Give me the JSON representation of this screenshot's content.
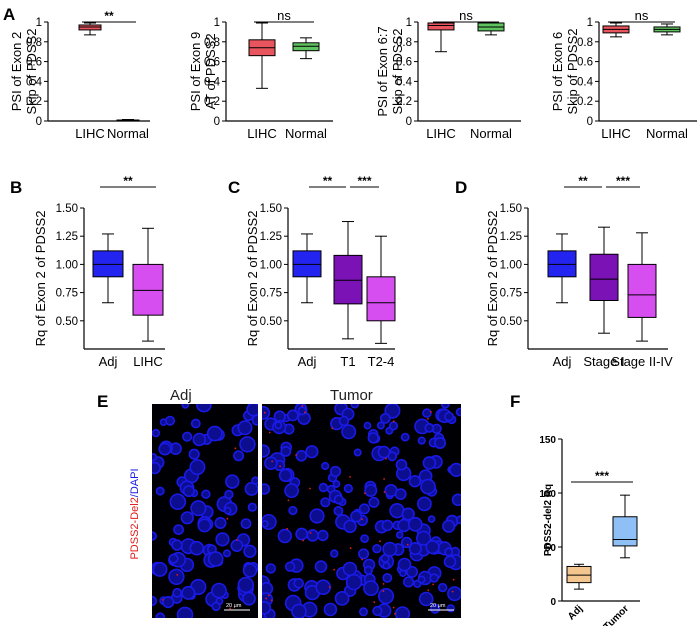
{
  "panel_labels": [
    "A",
    "B",
    "C",
    "D",
    "E",
    "F"
  ],
  "colors": {
    "red_box": "#e8555e",
    "green_box": "#5fc35f",
    "blue_box": "#2424f0",
    "purple_box": "#7a12b5",
    "magenta_box": "#d64ef0",
    "tan_box": "#f3c58f",
    "lightblue_box": "#8fc0f5",
    "stain_blue": "#1a1ae6",
    "stain_red": "#e31b1b"
  },
  "chart_data": [
    {
      "type": "box",
      "panel": "A",
      "ylabel_lines": [
        "PSI of Exon 2",
        "Skip of PDSS2"
      ],
      "categories": [
        "LIHC",
        "Normal"
      ],
      "ylim": [
        0,
        1
      ],
      "yticks": [
        0,
        0.2,
        0.4,
        0.6,
        0.8,
        1
      ],
      "boxes": [
        {
          "min": 0.87,
          "q1": 0.92,
          "median": 0.95,
          "q3": 0.97,
          "max": 0.99,
          "color": "red_box"
        },
        {
          "min": 0.0,
          "q1": 0.003,
          "median": 0.006,
          "q3": 0.01,
          "max": 0.015,
          "color": "green_box"
        }
      ],
      "significance": [
        {
          "from": 0,
          "to": 1,
          "label": "**"
        }
      ]
    },
    {
      "type": "box",
      "panel": "A",
      "ylabel_lines": [
        "PSI of Exon 9",
        "AT of PDSS2"
      ],
      "categories": [
        "LIHC",
        "Normal"
      ],
      "ylim": [
        0,
        1
      ],
      "yticks": [
        0,
        0.2,
        0.4,
        0.6,
        0.8,
        1
      ],
      "boxes": [
        {
          "min": 0.33,
          "q1": 0.66,
          "median": 0.74,
          "q3": 0.82,
          "max": 0.99,
          "color": "red_box"
        },
        {
          "min": 0.63,
          "q1": 0.71,
          "median": 0.755,
          "q3": 0.79,
          "max": 0.84,
          "color": "green_box"
        }
      ],
      "significance": [
        {
          "from": 0,
          "to": 1,
          "label": "ns"
        }
      ]
    },
    {
      "type": "box",
      "panel": "A",
      "ylabel_lines": [
        "PSI of Exon 6:7",
        "Skip of PDSS2"
      ],
      "categories": [
        "LIHC",
        "Normal"
      ],
      "ylim": [
        0,
        1
      ],
      "yticks": [
        0,
        0.2,
        0.4,
        0.6,
        0.8,
        1
      ],
      "boxes": [
        {
          "min": 0.7,
          "q1": 0.92,
          "median": 0.965,
          "q3": 0.99,
          "max": 1.0,
          "color": "red_box"
        },
        {
          "min": 0.87,
          "q1": 0.91,
          "median": 0.95,
          "q3": 0.99,
          "max": 1.0,
          "color": "green_box"
        }
      ],
      "significance": [
        {
          "from": 0,
          "to": 1,
          "label": "ns"
        }
      ]
    },
    {
      "type": "box",
      "panel": "A",
      "ylabel_lines": [
        "PSI of Exon 6",
        "Skip of PDSS2"
      ],
      "categories": [
        "LIHC",
        "Normal"
      ],
      "ylim": [
        0,
        1
      ],
      "yticks": [
        0,
        0.2,
        0.4,
        0.6,
        0.8,
        1
      ],
      "boxes": [
        {
          "min": 0.85,
          "q1": 0.89,
          "median": 0.925,
          "q3": 0.96,
          "max": 0.99,
          "color": "red_box"
        },
        {
          "min": 0.87,
          "q1": 0.9,
          "median": 0.925,
          "q3": 0.95,
          "max": 0.98,
          "color": "green_box"
        }
      ],
      "significance": [
        {
          "from": 0,
          "to": 1,
          "label": "ns"
        }
      ]
    },
    {
      "type": "box",
      "panel": "B",
      "ylabel_lines": [
        "Rq of Exon 2 of PDSS2"
      ],
      "categories": [
        "Adj",
        "LIHC"
      ],
      "ylim": [
        0.25,
        1.5
      ],
      "yticks": [
        0.5,
        0.75,
        1.0,
        1.25,
        1.5
      ],
      "ytick_labels": [
        "0.50",
        "0.75",
        "1.00",
        "1.25",
        "1.50"
      ],
      "boxes": [
        {
          "min": 0.66,
          "q1": 0.89,
          "median": 1.0,
          "q3": 1.12,
          "max": 1.27,
          "color": "blue_box"
        },
        {
          "min": 0.32,
          "q1": 0.55,
          "median": 0.77,
          "q3": 1.0,
          "max": 1.32,
          "color": "magenta_box"
        }
      ],
      "significance": [
        {
          "from": 0,
          "to": 1,
          "label": "**"
        }
      ]
    },
    {
      "type": "box",
      "panel": "C",
      "ylabel_lines": [
        "Rq of Exon 2 of PDSS2"
      ],
      "categories": [
        "Adj",
        "T1",
        "T2-4"
      ],
      "ylim": [
        0.25,
        1.5
      ],
      "yticks": [
        0.5,
        0.75,
        1.0,
        1.25,
        1.5
      ],
      "ytick_labels": [
        "0.50",
        "0.75",
        "1.00",
        "1.25",
        "1.50"
      ],
      "boxes": [
        {
          "min": 0.66,
          "q1": 0.89,
          "median": 1.0,
          "q3": 1.12,
          "max": 1.27,
          "color": "blue_box"
        },
        {
          "min": 0.34,
          "q1": 0.65,
          "median": 0.86,
          "q3": 1.08,
          "max": 1.38,
          "color": "purple_box"
        },
        {
          "min": 0.3,
          "q1": 0.5,
          "median": 0.66,
          "q3": 0.89,
          "max": 1.25,
          "color": "magenta_box"
        }
      ],
      "significance": [
        {
          "from": 0,
          "to": 1,
          "label": "**"
        },
        {
          "from": 1,
          "to": 2,
          "label": "***"
        }
      ]
    },
    {
      "type": "box",
      "panel": "D",
      "ylabel_lines": [
        "Rq of Exon 2 of PDSS2"
      ],
      "categories": [
        "Adj",
        "Stage I",
        "Stage II-IV"
      ],
      "ylim": [
        0.25,
        1.5
      ],
      "yticks": [
        0.5,
        0.75,
        1.0,
        1.25,
        1.5
      ],
      "ytick_labels": [
        "0.50",
        "0.75",
        "1.00",
        "1.25",
        "1.50"
      ],
      "boxes": [
        {
          "min": 0.66,
          "q1": 0.89,
          "median": 1.0,
          "q3": 1.12,
          "max": 1.27,
          "color": "blue_box"
        },
        {
          "min": 0.39,
          "q1": 0.68,
          "median": 0.87,
          "q3": 1.09,
          "max": 1.33,
          "color": "purple_box"
        },
        {
          "min": 0.32,
          "q1": 0.53,
          "median": 0.73,
          "q3": 1.0,
          "max": 1.28,
          "color": "magenta_box"
        }
      ],
      "significance": [
        {
          "from": 0,
          "to": 1,
          "label": "**"
        },
        {
          "from": 1,
          "to": 2,
          "label": "***"
        }
      ]
    },
    {
      "type": "box",
      "panel": "F",
      "ylabel_lines": [
        "PDSS2-del2 Rq"
      ],
      "categories": [
        "Adj",
        "Tumor"
      ],
      "ylim": [
        0,
        150
      ],
      "yticks": [
        0,
        50,
        100,
        150
      ],
      "boxes": [
        {
          "min": 11,
          "q1": 17,
          "median": 24,
          "q3": 32,
          "max": 34,
          "color": "tan_box"
        },
        {
          "min": 40,
          "q1": 51,
          "median": 57,
          "q3": 78,
          "max": 98,
          "color": "lightblue_box"
        }
      ],
      "significance": [
        {
          "from": 0,
          "to": 1,
          "label": "***"
        }
      ]
    }
  ],
  "panel_e": {
    "titles": [
      "Adj",
      "Tumor"
    ],
    "side_label_red": "PDSS2-Del2",
    "side_label_blue": "/DAPI",
    "scale_bar": "20 μm"
  }
}
